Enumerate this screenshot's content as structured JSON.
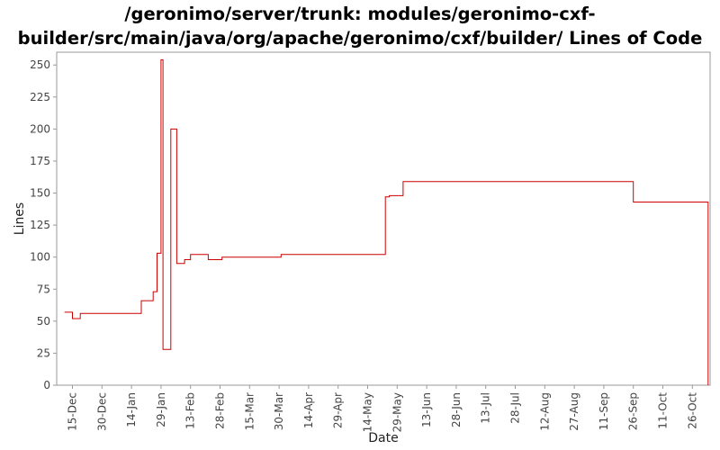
{
  "chart_data": {
    "type": "line",
    "title_line1": "/geronimo/server/trunk: modules/geronimo-cxf-",
    "title_line2": "builder/src/main/java/org/apache/geronimo/cxf/builder/ Lines of Code",
    "xlabel": "Date",
    "ylabel": "Lines",
    "ylim": [
      0,
      260
    ],
    "yticks": [
      0,
      25,
      50,
      75,
      100,
      125,
      150,
      175,
      200,
      225,
      250
    ],
    "x_ticks": [
      {
        "label": "15-Dec",
        "date": "2006-12-15"
      },
      {
        "label": "30-Dec",
        "date": "2006-12-30"
      },
      {
        "label": "14-Jan",
        "date": "2007-01-14"
      },
      {
        "label": "29-Jan",
        "date": "2007-01-29"
      },
      {
        "label": "13-Feb",
        "date": "2007-02-13"
      },
      {
        "label": "28-Feb",
        "date": "2007-02-28"
      },
      {
        "label": "15-Mar",
        "date": "2007-03-15"
      },
      {
        "label": "30-Mar",
        "date": "2007-03-30"
      },
      {
        "label": "14-Apr",
        "date": "2007-04-14"
      },
      {
        "label": "29-Apr",
        "date": "2007-04-29"
      },
      {
        "label": "14-May",
        "date": "2007-05-14"
      },
      {
        "label": "29-May",
        "date": "2007-05-29"
      },
      {
        "label": "13-Jun",
        "date": "2007-06-13"
      },
      {
        "label": "28-Jun",
        "date": "2007-06-28"
      },
      {
        "label": "13-Jul",
        "date": "2007-07-13"
      },
      {
        "label": "28-Jul",
        "date": "2007-07-28"
      },
      {
        "label": "12-Aug",
        "date": "2007-08-12"
      },
      {
        "label": "27-Aug",
        "date": "2007-08-27"
      },
      {
        "label": "11-Sep",
        "date": "2007-09-11"
      },
      {
        "label": "26-Sep",
        "date": "2007-09-26"
      },
      {
        "label": "11-Oct",
        "date": "2007-10-11"
      },
      {
        "label": "26-Oct",
        "date": "2007-10-26"
      }
    ],
    "xlim": [
      "2006-12-07",
      "2007-11-04"
    ],
    "line_color": "#cc0000",
    "grid": false,
    "series": [
      {
        "step": "post",
        "points": [
          {
            "date": "2006-12-11",
            "value": 57
          },
          {
            "date": "2006-12-15",
            "value": 52
          },
          {
            "date": "2006-12-19",
            "value": 56
          },
          {
            "date": "2007-01-19",
            "value": 66
          },
          {
            "date": "2007-01-25",
            "value": 73
          },
          {
            "date": "2007-01-27",
            "value": 103
          },
          {
            "date": "2007-01-29",
            "value": 254
          },
          {
            "date": "2007-01-30",
            "value": 28
          },
          {
            "date": "2007-02-03",
            "value": 200
          },
          {
            "date": "2007-02-06",
            "value": 95
          },
          {
            "date": "2007-02-10",
            "value": 98
          },
          {
            "date": "2007-02-13",
            "value": 102
          },
          {
            "date": "2007-02-22",
            "value": 98
          },
          {
            "date": "2007-03-01",
            "value": 100
          },
          {
            "date": "2007-03-31",
            "value": 102
          },
          {
            "date": "2007-05-23",
            "value": 147
          },
          {
            "date": "2007-05-25",
            "value": 148
          },
          {
            "date": "2007-06-01",
            "value": 159
          },
          {
            "date": "2007-09-26",
            "value": 143
          },
          {
            "date": "2007-11-03",
            "value": 0
          }
        ]
      }
    ]
  }
}
